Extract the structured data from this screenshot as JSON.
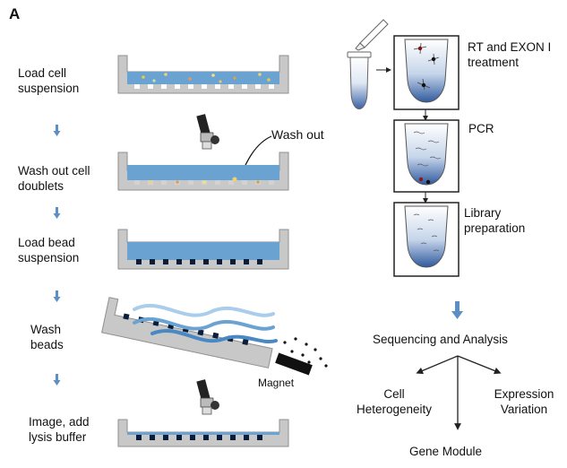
{
  "panel_label": "A",
  "left_steps": [
    {
      "line1": "Load  cell",
      "line2": "suspension"
    },
    {
      "line1": "Wash out cell",
      "line2": "doublets"
    },
    {
      "line1": "Load bead",
      "line2": "suspension"
    },
    {
      "line1": "Wash",
      "line2": "beads"
    },
    {
      "line1": "Image, add",
      "line2": "lysis buffer"
    }
  ],
  "wash_out_label": "Wash out",
  "magnet_label": "Magnet",
  "right_steps": [
    {
      "line1": "RT and EXON I",
      "line2": "treatment"
    },
    {
      "line1": "PCR",
      "line2": ""
    },
    {
      "line1": "Library",
      "line2": "preparation"
    }
  ],
  "sequencing_label": "Sequencing and Analysis",
  "outcomes": {
    "cell_heterogeneity": {
      "line1": "Cell",
      "line2": "Heterogeneity"
    },
    "expression_variation": {
      "line1": "Expression",
      "line2": "Variation"
    },
    "gene_module": "Gene Module"
  },
  "colors": {
    "tray": "#c8c8c8",
    "tray_edge": "#8f8f8f",
    "liquid": "#6aa3d2",
    "arrow": "#5b8fc6",
    "tube_fill_top": "#ffffff",
    "tube_fill_bottom": "#2f5a9e"
  }
}
